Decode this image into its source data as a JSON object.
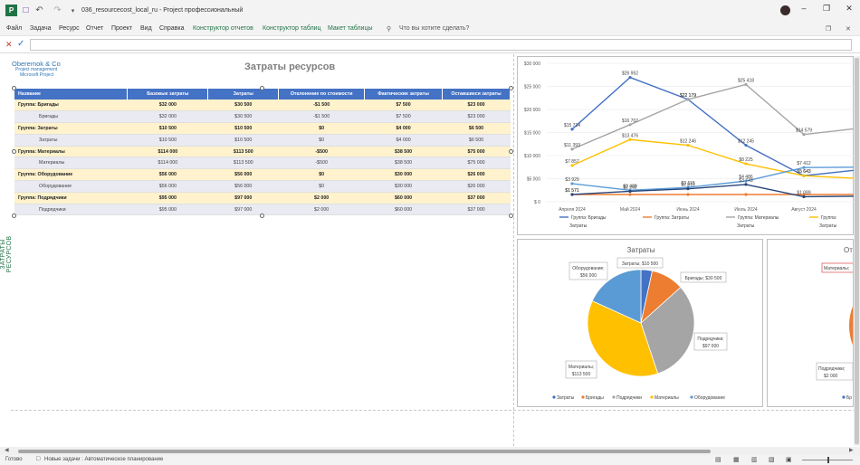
{
  "titlebar": {
    "document_title": "036_resourcecost_local_ru  -  Project профессиональный",
    "icons": [
      "project-logo-icon",
      "save-icon",
      "undo-icon",
      "redo-icon",
      "customize-icon"
    ]
  },
  "menu": {
    "items": [
      "Файл",
      "Задача",
      "Ресурс",
      "Отчет",
      "Проект",
      "Вид",
      "Справка"
    ],
    "context_items": [
      "Конструктор отчетов",
      "Конструктор таблиц",
      "Макет таблицы"
    ],
    "tell_me": "Что вы хотите сделать?"
  },
  "side_label": "ЗАТРАТЫ РЕСУРСОВ",
  "report": {
    "company": "Oberemok & Co",
    "company_sub1": "Project management",
    "company_sub2": "Microsoft Project",
    "title": "Затраты ресурсов"
  },
  "table": {
    "headers": [
      "Название",
      "Базовые затраты",
      "Затраты",
      "Отклонение по стоимости",
      "Фактические затраты",
      "Оставшиеся затраты"
    ],
    "rows": [
      {
        "kind": "group",
        "cells": [
          "Группа: Бригады",
          "$32 000",
          "$30 500",
          "-$1 500",
          "$7 500",
          "$23 000"
        ]
      },
      {
        "kind": "item",
        "cells": [
          "Бригады",
          "$32 000",
          "$30 500",
          "-$1 500",
          "$7 500",
          "$23 000"
        ]
      },
      {
        "kind": "group",
        "cells": [
          "Группа: Затраты",
          "$10 500",
          "$10 500",
          "$0",
          "$4 000",
          "$6 500"
        ]
      },
      {
        "kind": "item",
        "cells": [
          "Затраты",
          "$10 500",
          "$10 500",
          "$0",
          "$4 000",
          "$6 500"
        ]
      },
      {
        "kind": "group",
        "cells": [
          "Группа: Материалы",
          "$114 000",
          "$113 500",
          "-$500",
          "$38 500",
          "$75 000"
        ]
      },
      {
        "kind": "item",
        "cells": [
          "Материалы",
          "$114 000",
          "$113 500",
          "-$500",
          "$38 500",
          "$75 000"
        ]
      },
      {
        "kind": "group",
        "cells": [
          "Группа: Оборудование",
          "$56 000",
          "$56 000",
          "$0",
          "$30 000",
          "$26 000"
        ]
      },
      {
        "kind": "item",
        "cells": [
          "Оборудование",
          "$56 000",
          "$56 000",
          "$0",
          "$30 000",
          "$26 000"
        ]
      },
      {
        "kind": "group",
        "cells": [
          "Группа: Подрядчики",
          "$95 000",
          "$97 000",
          "$2 000",
          "$60 000",
          "$37 000"
        ]
      },
      {
        "kind": "item",
        "cells": [
          "Подрядчики",
          "$95 000",
          "$97 000",
          "$2 000",
          "$60 000",
          "$37 000"
        ]
      }
    ]
  },
  "chart_data": [
    {
      "type": "line",
      "categories": [
        "Апреля 2024",
        "Май 2024",
        "Июнь 2024",
        "Июль 2024",
        "Август 2024",
        "Сен"
      ],
      "y_ticks": [
        "$30 000",
        "$25 000",
        "$20 000",
        "$15 000",
        "$10 000",
        "$5 000",
        "$ 0"
      ],
      "ylim": [
        0,
        30000
      ],
      "legend_position": "bottom",
      "series": [
        {
          "name": "Группа: Бригады",
          "color": "#4472c4",
          "values": [
            15714,
            26952,
            22179,
            12245,
            5643,
            7000
          ],
          "labels": [
            "$15 714",
            "$26 952",
            "$22 179",
            "$12 245",
            "$5 643",
            ""
          ]
        },
        {
          "name": "Группа: Затраты",
          "color": "#ed7d31",
          "values": [
            1571,
            1571,
            1571,
            1571,
            1571,
            1571
          ],
          "labels": [
            "$1 571",
            "",
            "",
            "",
            "",
            ""
          ]
        },
        {
          "name": "Группа: Материалы",
          "color": "#a5a5a5",
          "values": [
            11393,
            16707,
            22179,
            25418,
            14579,
            16000
          ],
          "labels": [
            "$11 393",
            "$16 707",
            "$22 179",
            "$25 418",
            "$14 579",
            ""
          ]
        },
        {
          "name": "Группа: Оборудование",
          "color": "#ffc000",
          "values": [
            7857,
            13476,
            12246,
            8225,
            5643,
            5000
          ],
          "labels": [
            "$7 857",
            "$13 476",
            "$12 246",
            "$8 225",
            "$5 643",
            ""
          ]
        },
        {
          "name": "Группа: Подрядчики",
          "color": "#5b9bd5",
          "values": [
            3929,
            2488,
            3110,
            4486,
            7412,
            7500
          ],
          "labels": [
            "$3 929",
            "$2 488",
            "$3 110",
            "$4 486",
            "$7 412",
            ""
          ]
        },
        {
          "name": "Группа: Прочее",
          "color": "#264478",
          "values": [
            1571,
            2262,
            2810,
            3743,
            1089,
            1200
          ],
          "labels": [
            "$1 571",
            "$2 262",
            "$2 810",
            "$3 743",
            "$1 089",
            ""
          ]
        }
      ],
      "legend": [
        "Группа: Бригады",
        "Группа: Затраты",
        "Группа: Материалы",
        "Группа:"
      ],
      "legend_second": [
        "",
        "Затраты",
        "",
        "Затраты",
        "",
        "Затраты"
      ]
    },
    {
      "type": "pie",
      "title": "Затраты",
      "slices": [
        {
          "name": "Затраты",
          "value": 10500,
          "color": "#4472c4",
          "label": "Затраты; $10 500"
        },
        {
          "name": "Бригады",
          "value": 30500,
          "color": "#ed7d31",
          "label": "Бригады; $30 500"
        },
        {
          "name": "Подрядчики",
          "value": 97000,
          "color": "#a5a5a5",
          "label": "Подрядчики; $97 000"
        },
        {
          "name": "Материалы",
          "value": 113500,
          "color": "#ffc000",
          "label": "Материалы; $113 500"
        },
        {
          "name": "Оборудование",
          "value": 56000,
          "color": "#5b9bd5",
          "label": "Оборудование; $56 000"
        }
      ]
    },
    {
      "type": "pie",
      "title": "От",
      "labels": [
        "Материалы;",
        "Подрядчики;",
        "$2 000"
      ],
      "legend": [
        "Бр"
      ]
    }
  ],
  "status": {
    "ready": "Готово",
    "new_tasks": "Новые задачи : Автоматическое планирование"
  }
}
